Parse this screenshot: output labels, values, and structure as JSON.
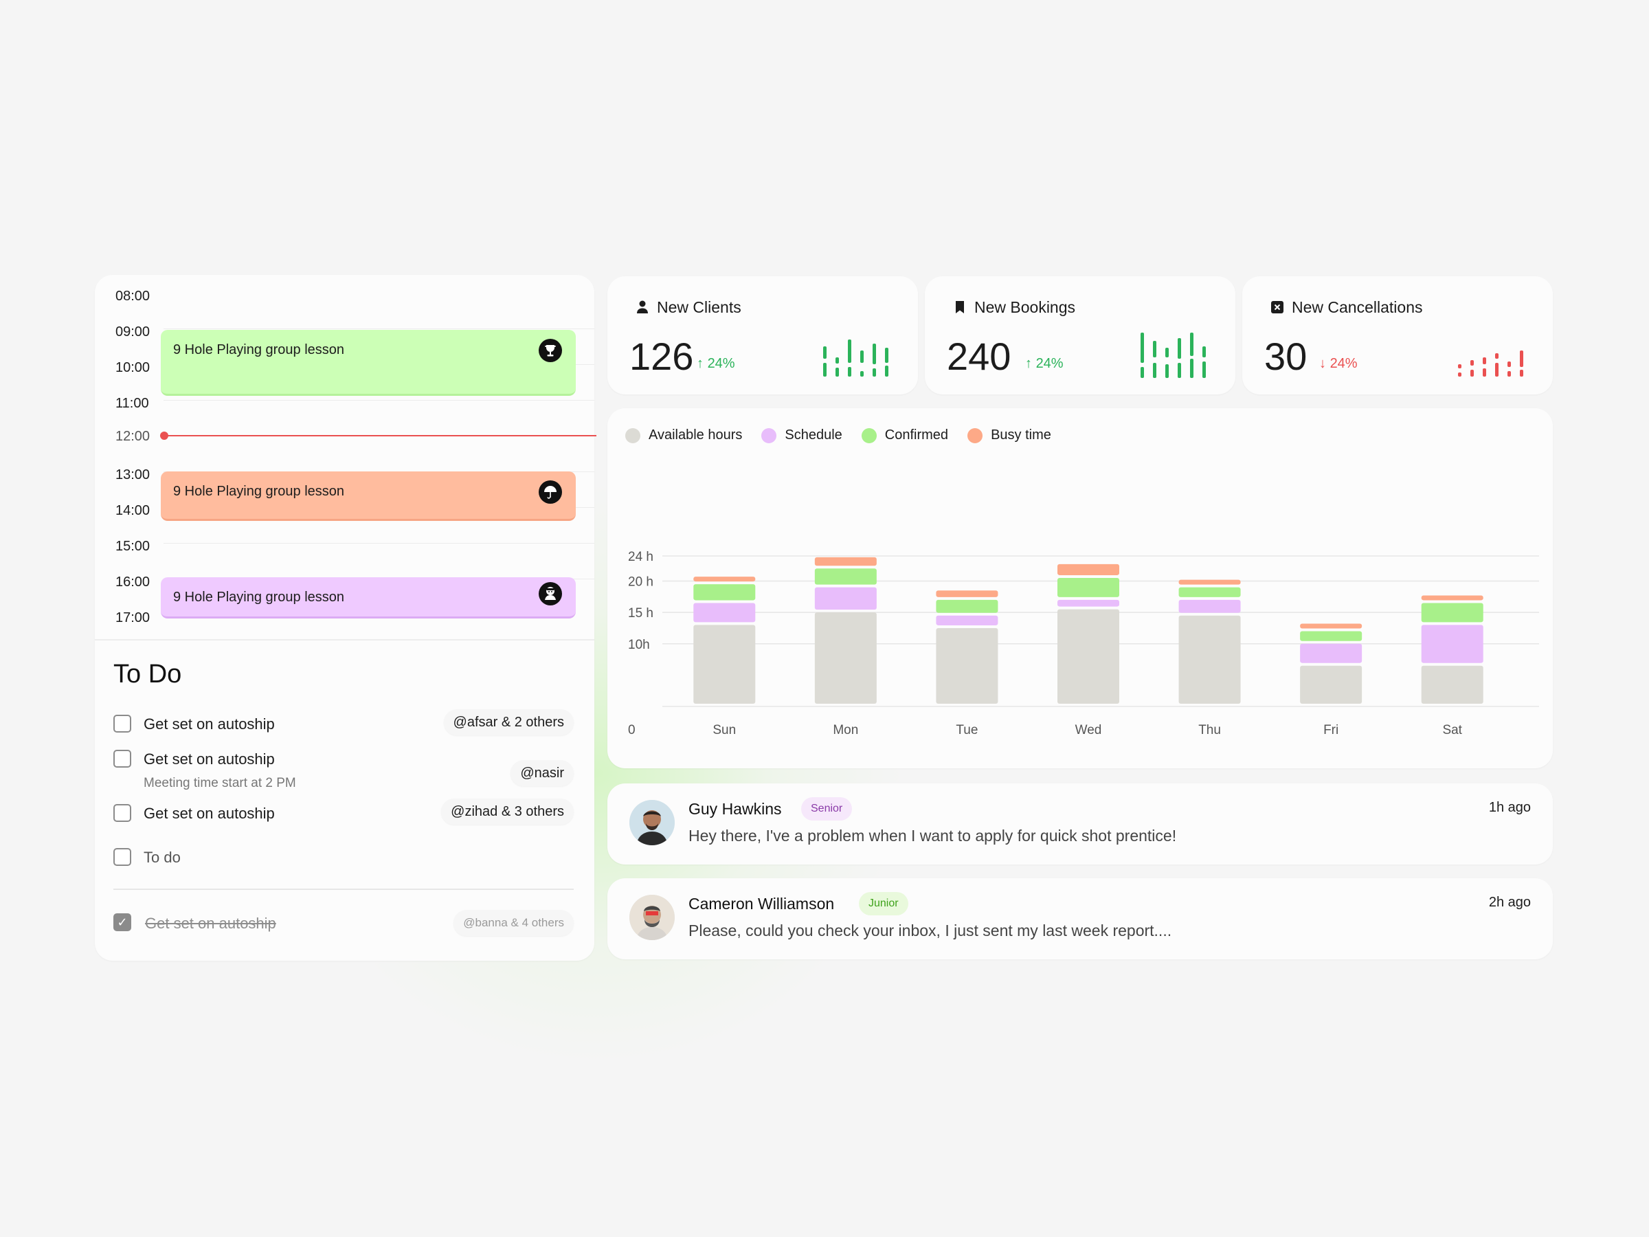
{
  "calendar": {
    "hours": [
      "08:00",
      "09:00",
      "10:00",
      "11:00",
      "13:00",
      "14:00",
      "15:00",
      "16:00",
      "17:00"
    ],
    "current_time": "12:00",
    "events": [
      {
        "title": "9 Hole Playing group lesson",
        "icon": "trophy-icon",
        "color": "#ccffb6"
      },
      {
        "title": "9 Hole Playing group lesson",
        "icon": "umbrella-icon",
        "color": "#ffbc9e"
      },
      {
        "title": "9 Hole Playing group lesson",
        "icon": "golfer-icon",
        "color": "#efcaff"
      }
    ]
  },
  "todo": {
    "title": "To Do",
    "items": [
      {
        "label": "Get set on autoship",
        "tag": "@afsar & 2 others",
        "done": false
      },
      {
        "label": "Get set on autoship",
        "sub": "Meeting time start at 2 PM",
        "tag": "@nasir",
        "done": false
      },
      {
        "label": "Get set on autoship",
        "tag": "@zihad & 3 others",
        "done": false
      },
      {
        "label": "To do",
        "done": false
      },
      {
        "label": "Get set on autoship",
        "tag": "@banna & 4 others",
        "done": true
      }
    ]
  },
  "stats": [
    {
      "title": "New Clients",
      "icon": "user-icon",
      "value": "126",
      "change": "24%",
      "trend": "up",
      "color": "#2bb35a"
    },
    {
      "title": "New Bookings",
      "icon": "bookmark-icon",
      "value": "240",
      "change": "24%",
      "trend": "up",
      "color": "#2bb35a"
    },
    {
      "title": "New Cancellations",
      "icon": "cancel-icon",
      "value": "30",
      "change": "24%",
      "trend": "down",
      "color": "#ea5050"
    }
  ],
  "chart_data": {
    "type": "bar",
    "stacked": true,
    "categories": [
      "Sun",
      "Mon",
      "Tue",
      "Wed",
      "Thu",
      "Fri",
      "Sat"
    ],
    "y_ticks": [
      "0",
      "10h",
      "15 h",
      "20 h",
      "24 h"
    ],
    "ylim": [
      0,
      24
    ],
    "series": [
      {
        "name": "Available hours",
        "color": "#dcdbd5",
        "values": [
          13,
          15,
          12.5,
          15.5,
          14.5,
          6.5,
          6.5
        ]
      },
      {
        "name": "Schedule",
        "color": "#e8bdfb",
        "values": [
          3.5,
          4,
          2,
          1.5,
          2.5,
          3.5,
          6.5
        ]
      },
      {
        "name": "Confirmed",
        "color": "#a8f08a",
        "values": [
          3,
          3,
          2.5,
          3.5,
          2,
          2,
          3.5
        ]
      },
      {
        "name": "Busy time",
        "color": "#fda987",
        "values": [
          1.2,
          1.8,
          1.5,
          2.2,
          1.2,
          1.2,
          1.2
        ]
      }
    ],
    "grid": true,
    "legend_position": "top-left"
  },
  "messages": [
    {
      "name": "Guy Hawkins",
      "badge": "Senior",
      "text": "Hey there, I've a problem when I want to apply for quick shot prentice!",
      "time": "1h ago"
    },
    {
      "name": "Cameron Williamson",
      "badge": "Junior",
      "text": "Please, could you check your inbox, I just sent my last week report....",
      "time": "2h ago"
    }
  ]
}
